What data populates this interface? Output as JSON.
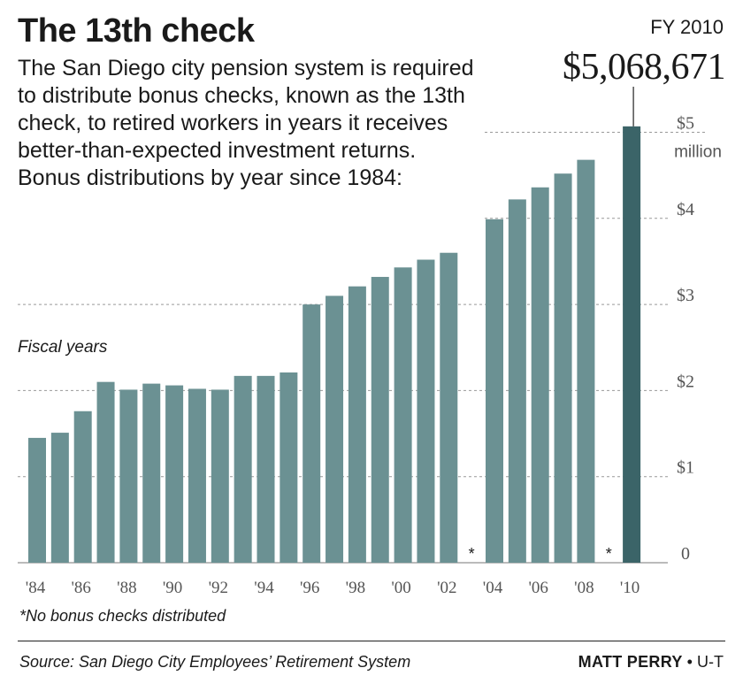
{
  "header": {
    "title": "The 13th check",
    "dek": "The San Diego city pension system is required to distribute bonus checks, known as the 13th check, to retired workers in years it receives better-than-expected investment returns. Bonus distributions by year since 1984:"
  },
  "highlight": {
    "label": "FY 2010",
    "amount": "$5,068,671"
  },
  "footnote": "*No bonus checks distributed",
  "footer": {
    "source": "Source: San Diego City Employees’ Retirement System",
    "credit_name": "MATT PERRY",
    "credit_sep": "•",
    "credit_org": "U-T"
  },
  "colors": {
    "bar": "#6b9193",
    "highlight_bar": "#3b6468",
    "grid": "#999999",
    "text": "#1a1a1a",
    "axis_text": "#555555"
  },
  "chart_data": {
    "type": "bar",
    "fiscal_label": "Fiscal years",
    "unit_label": "million",
    "ylim": [
      0,
      5.2
    ],
    "y_ticks": [
      0,
      1,
      2,
      3,
      4,
      5
    ],
    "y_tick_labels": [
      "0",
      "$1",
      "$2",
      "$3",
      "$4",
      "$5"
    ],
    "grid": "dashed",
    "categories": [
      "1984",
      "1985",
      "1986",
      "1987",
      "1988",
      "1989",
      "1990",
      "1991",
      "1992",
      "1993",
      "1994",
      "1995",
      "1996",
      "1997",
      "1998",
      "1999",
      "2000",
      "2001",
      "2002",
      "2003",
      "2004",
      "2005",
      "2006",
      "2007",
      "2008",
      "2009",
      "2010"
    ],
    "values": [
      1.45,
      1.51,
      1.76,
      2.1,
      2.01,
      2.08,
      2.06,
      2.02,
      2.01,
      2.17,
      2.17,
      2.21,
      3.0,
      3.1,
      3.21,
      3.32,
      3.43,
      3.52,
      3.6,
      0,
      3.99,
      4.22,
      4.36,
      4.52,
      4.68,
      0,
      5.068671
    ],
    "no_bonus_marker": "*",
    "no_bonus_years": [
      "2003",
      "2009"
    ],
    "highlight_year": "2010",
    "x_tick_labels": [
      {
        "category": "1984",
        "label": "'84"
      },
      {
        "category": "1986",
        "label": "'86"
      },
      {
        "category": "1988",
        "label": "'88"
      },
      {
        "category": "1990",
        "label": "'90"
      },
      {
        "category": "1992",
        "label": "'92"
      },
      {
        "category": "1994",
        "label": "'94"
      },
      {
        "category": "1996",
        "label": "'96"
      },
      {
        "category": "1998",
        "label": "'98"
      },
      {
        "category": "2000",
        "label": "'00"
      },
      {
        "category": "2002",
        "label": "'02"
      },
      {
        "category": "2004",
        "label": "'04"
      },
      {
        "category": "2006",
        "label": "'06"
      },
      {
        "category": "2008",
        "label": "'08"
      },
      {
        "category": "2010",
        "label": "'10"
      }
    ]
  }
}
